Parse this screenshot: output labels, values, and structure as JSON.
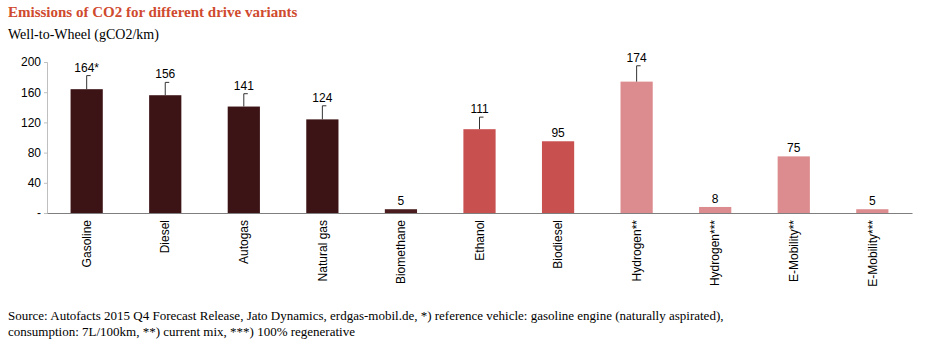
{
  "chart_data": {
    "type": "bar",
    "title": "Emissions of CO2 for different drive variants",
    "subtitle": "Well-to-Wheel (gCO2/km)",
    "categories": [
      "Gasoline",
      "Diesel",
      "Autogas",
      "Natural gas",
      "Biomethane",
      "Ethanol",
      "Biodiesel",
      "Hydrogen**",
      "Hydrogen***",
      "E-Mobility**",
      "E-Mobility***"
    ],
    "values": [
      164,
      156,
      141,
      124,
      5,
      111,
      95,
      174,
      8,
      75,
      5
    ],
    "value_labels": [
      "164*",
      "156",
      "141",
      "124",
      "5",
      "111",
      "95",
      "174",
      "8",
      "75",
      "5"
    ],
    "errors": [
      18,
      17,
      17,
      18,
      null,
      16,
      null,
      21,
      null,
      null,
      null
    ],
    "colors": [
      "#3d1416",
      "#3d1416",
      "#3d1416",
      "#3d1416",
      "#4a1c1e",
      "#c8504f",
      "#c8504f",
      "#dc8c8e",
      "#dc8c8e",
      "#dc8c8e",
      "#dc8c8e"
    ],
    "ylim": [
      0,
      200
    ],
    "yticks": [
      {
        "value": 0,
        "label": "-"
      },
      40,
      80,
      120,
      160,
      200
    ],
    "grid": false,
    "data_labels": true,
    "annotations": [
      "Source: Autofacts 2015 Q4 Forecast Release, Jato Dynamics, erdgas-mobil.de, *) reference vehicle: gasoline engine (naturally aspirated),",
      "consumption: 7L/100km, **) current mix, ***) 100% regenerative"
    ]
  }
}
